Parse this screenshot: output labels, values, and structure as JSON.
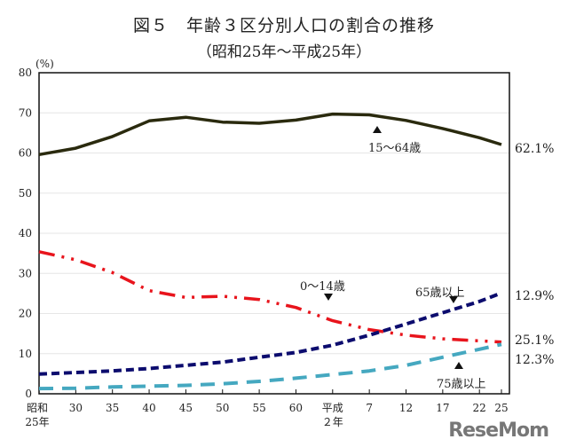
{
  "title": "図５　年齢３区分別人口の割合の推移",
  "subtitle": "（昭和25年〜平成25年）",
  "watermark": "ReseMom",
  "chart_data": {
    "type": "line",
    "title": "図５　年齢３区分別人口の割合の推移",
    "subtitle": "（昭和25年〜平成25年）",
    "ylabel": "(%)",
    "ylim": [
      0,
      80
    ],
    "yticks": [
      0,
      10,
      20,
      30,
      40,
      50,
      60,
      70,
      80
    ],
    "grid": true,
    "legend": "inline labels",
    "categories": [
      "昭和25年",
      "30",
      "35",
      "40",
      "45",
      "50",
      "55",
      "60",
      "平成2年",
      "7",
      "12",
      "17",
      "22",
      "25"
    ],
    "tick_labels": [
      [
        "昭和",
        "25年"
      ],
      [
        "30"
      ],
      [
        "35"
      ],
      [
        "40"
      ],
      [
        "45"
      ],
      [
        "50"
      ],
      [
        "55"
      ],
      [
        "60"
      ],
      [
        "平成",
        "２年"
      ],
      [
        "7"
      ],
      [
        "12"
      ],
      [
        "17"
      ],
      [
        "22"
      ],
      [
        "25"
      ]
    ],
    "series": [
      {
        "name": "15〜64歳",
        "color": "#2a2a0e",
        "style": "solid",
        "end_label": "62.1%",
        "values": [
          59.6,
          61.2,
          64.1,
          68.0,
          68.9,
          67.7,
          67.4,
          68.2,
          69.7,
          69.5,
          68.1,
          66.1,
          63.8,
          62.1
        ]
      },
      {
        "name": "0〜14歳",
        "color": "#e8141c",
        "style": "dash-dot-dot",
        "end_label": "12.9%",
        "values": [
          35.4,
          33.4,
          30.2,
          25.7,
          24.0,
          24.3,
          23.5,
          21.5,
          18.2,
          16.0,
          14.6,
          13.7,
          13.2,
          12.9
        ]
      },
      {
        "name": "65歳以上",
        "color": "#0c0c6e",
        "style": "short-dash",
        "end_label": "25.1%",
        "values": [
          4.9,
          5.3,
          5.7,
          6.3,
          7.1,
          7.9,
          9.1,
          10.3,
          12.1,
          14.6,
          17.4,
          20.2,
          23.0,
          25.1
        ]
      },
      {
        "name": "75歳以上",
        "color": "#45a8c0",
        "style": "long-dash",
        "end_label": "12.3%",
        "values": [
          1.3,
          1.4,
          1.7,
          1.9,
          2.1,
          2.5,
          3.1,
          3.9,
          4.8,
          5.7,
          7.1,
          9.1,
          11.1,
          12.3
        ]
      }
    ]
  }
}
